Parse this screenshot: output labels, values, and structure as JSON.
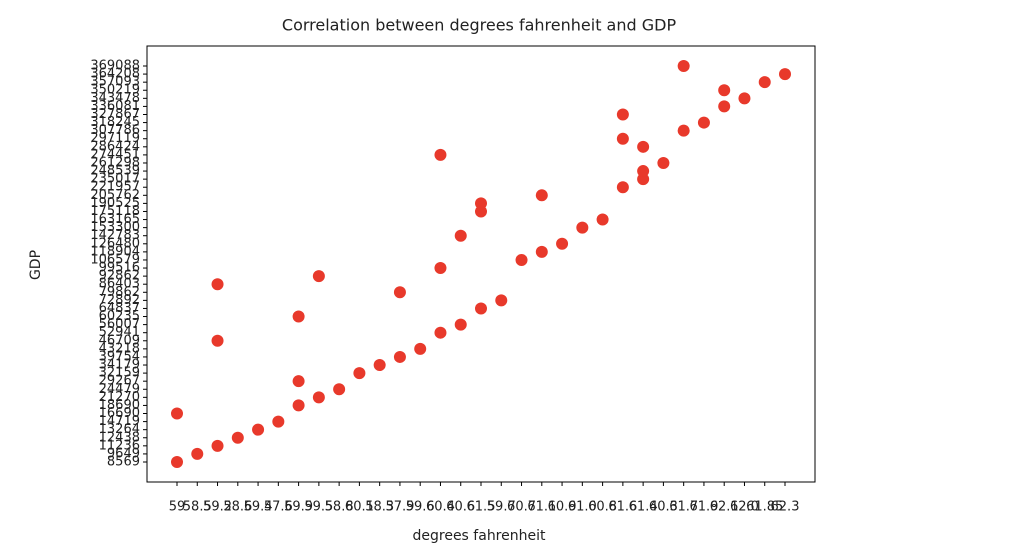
{
  "chart_data": {
    "type": "scatter",
    "title": "Correlation between degrees fahrenheit and GDP",
    "xlabel": "degrees fahrenheit",
    "ylabel": "GDP",
    "color": "#e8392b",
    "x_categories": [
      "59",
      "58.5",
      "59.2",
      "58.6",
      "59.4",
      "57.6",
      "59.9",
      "59.5",
      "58.8",
      "60.1",
      "58.3",
      "57.9",
      "59.6",
      "60.4",
      "60.6",
      "61.5",
      "59.7",
      "60.7",
      "61.1",
      "60.9",
      "61.0",
      "60.8",
      "61.6",
      "61.4",
      "60.3",
      "61.7",
      "61.9",
      "62.1",
      "62.0",
      "61.85",
      "62.3"
    ],
    "y_categories": [
      "8569",
      "9649",
      "11236",
      "12438",
      "13264",
      "14719",
      "16690",
      "18690",
      "21270",
      "24479",
      "29267",
      "32159",
      "34179",
      "39754",
      "43218",
      "46709",
      "52941",
      "56007",
      "60235",
      "64837",
      "72892",
      "79862",
      "86403",
      "92862",
      "99516",
      "106579",
      "118904",
      "126480",
      "142783",
      "153300",
      "163165",
      "175118",
      "190525",
      "205762",
      "221957",
      "235017",
      "248539",
      "261298",
      "274451",
      "286424",
      "297119",
      "307786",
      "318245",
      "327867",
      "336081",
      "343478",
      "350219",
      "357093",
      "364208",
      "369088"
    ],
    "x": [
      "59",
      "58.5",
      "59.2",
      "58.6",
      "59.4",
      "57.6",
      "59.9",
      "59.5",
      "58.8",
      "60.1",
      "58.3",
      "57.9",
      "59.6",
      "60.4",
      "60.6",
      "61.5",
      "59.7",
      "60.7",
      "61.1",
      "60.9",
      "61.0",
      "60.8",
      "61.6",
      "61.4",
      "60.3",
      "61.7",
      "61.9",
      "62.1",
      "62.0",
      "61.85",
      "62.3",
      "59",
      "59.2",
      "59.2",
      "59.9",
      "59.9",
      "59.5",
      "57.9",
      "60.4",
      "60.4",
      "60.6",
      "61.5",
      "61.5",
      "61.1",
      "61.6",
      "61.6",
      "61.4",
      "61.4",
      "61.7",
      "62.1"
    ],
    "y": [
      "8569",
      "9649",
      "11236",
      "12438",
      "13264",
      "14719",
      "18690",
      "21270",
      "24479",
      "32159",
      "34179",
      "39754",
      "43218",
      "52941",
      "56007",
      "64837",
      "72892",
      "106579",
      "118904",
      "126480",
      "153300",
      "163165",
      "221957",
      "235017",
      "261298",
      "307786",
      "318245",
      "336081",
      "343478",
      "357093",
      "364208",
      "16690",
      "46709",
      "86403",
      "29267",
      "60235",
      "92862",
      "79862",
      "99516",
      "274451",
      "142783",
      "175118",
      "190525",
      "205762",
      "297119",
      "327867",
      "248539",
      "286424",
      "369088",
      "350219"
    ]
  }
}
